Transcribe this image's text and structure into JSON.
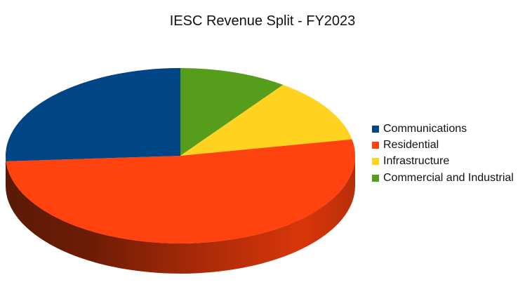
{
  "chart_data": {
    "type": "pie",
    "title": "IESC Revenue Split - FY2023",
    "series": [
      {
        "name": "Communications",
        "value": 26,
        "color": "#004586"
      },
      {
        "name": "Residential",
        "value": 52,
        "color": "#ff420e"
      },
      {
        "name": "Infrastructure",
        "value": 12,
        "color": "#ffd320"
      },
      {
        "name": "Commercial and Industrial",
        "value": 10,
        "color": "#579d1c"
      }
    ],
    "legend_position": "right",
    "style": "3d"
  }
}
